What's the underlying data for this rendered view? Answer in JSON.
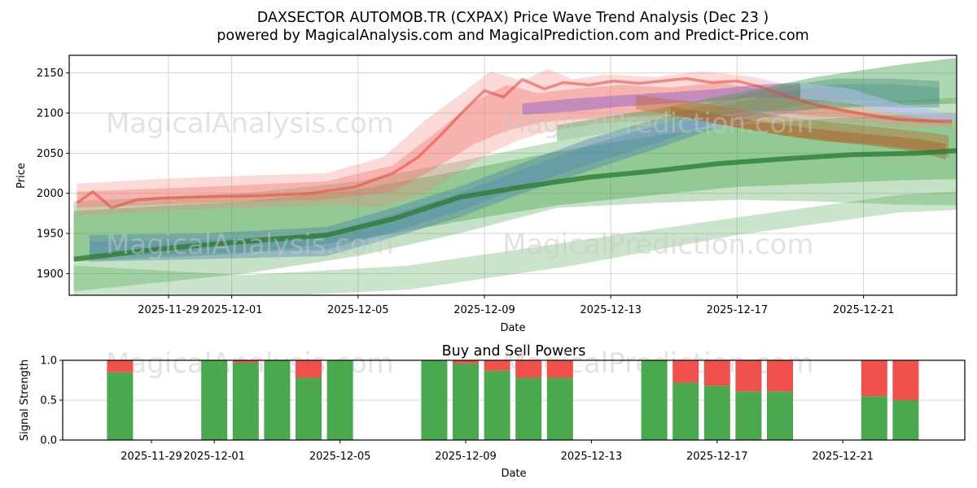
{
  "header": {
    "title_line1": "DAXSECTOR AUTOMOB.TR (CXPAX) Price Wave Trend Analysis (Dec 23 )",
    "title_line2": "powered by MagicalAnalysis.com and MagicalPrediction.com and Predict-Price.com"
  },
  "watermarks": {
    "text_left": "MagicalAnalysis.com",
    "text_right": "MagicalPrediction.com",
    "color": "#c9c9c9"
  },
  "colors": {
    "grid": "#d4d4d4",
    "frame": "#000000",
    "bar_buy": "#4aa84e",
    "bar_sell": "#f0514c"
  },
  "chart_data": [
    {
      "type": "area",
      "name": "price-wave-trend",
      "ylabel": "Price",
      "xlabel": "Date",
      "grid": true,
      "x_left_date": "2025-11-26",
      "x_right_date": "2025-12-24",
      "ylim": [
        1873,
        2172
      ],
      "yticks": [
        1900,
        1950,
        2000,
        2050,
        2100,
        2150
      ],
      "xticks": [
        "2025-11-29",
        "2025-12-01",
        "2025-12-05",
        "2025-12-09",
        "2025-12-13",
        "2025-12-17",
        "2025-12-21"
      ],
      "bands": [
        {
          "name": "green-bottom-band",
          "color": "#3fa045",
          "opacity": 0.28,
          "d": [
            0,
            5.4,
            10.6,
            15.8,
            21,
            26.1,
            28.2
          ],
          "hi": [
            1910,
            1898,
            1910,
            1940,
            1970,
            1998,
            2003
          ],
          "lo": [
            1870,
            1870,
            1880,
            1910,
            1948,
            1976,
            1980
          ]
        },
        {
          "name": "green-outer-band",
          "color": "#3fa045",
          "opacity": 0.3,
          "d": [
            0,
            3,
            5.4,
            9,
            12.2,
            15.3,
            18.4,
            21,
            23.5,
            26.1,
            28.2
          ],
          "hi": [
            1990,
            1996,
            2000,
            2015,
            2040,
            2065,
            2085,
            2098,
            2108,
            2115,
            2120
          ],
          "lo": [
            1878,
            1890,
            1900,
            1922,
            1950,
            1982,
            1988,
            1992,
            1990,
            1986,
            1985
          ]
        },
        {
          "name": "green-mid-band",
          "color": "#3fa045",
          "opacity": 0.38,
          "d": [
            0,
            5.4,
            9,
            12.2,
            15.3,
            18.4,
            21,
            23.5,
            26.1,
            28.2
          ],
          "hi": [
            1978,
            1990,
            2005,
            2028,
            2052,
            2072,
            2085,
            2092,
            2098,
            2100
          ],
          "lo": [
            1915,
            1925,
            1942,
            1965,
            1985,
            1998,
            2008,
            2012,
            2016,
            2018
          ]
        },
        {
          "name": "blue-outer-band",
          "color": "#4a7fae",
          "opacity": 0.4,
          "d": [
            0.5,
            4.1,
            8,
            10.1,
            12.2,
            14.2,
            16.3,
            18.4,
            20.4,
            22.2,
            24.1,
            25.9,
            27.4
          ],
          "hi": [
            1948,
            1950,
            1958,
            1982,
            2008,
            2038,
            2068,
            2092,
            2115,
            2132,
            2143,
            2143,
            2140
          ],
          "lo": [
            1915,
            1918,
            1922,
            1945,
            1970,
            2000,
            2028,
            2055,
            2082,
            2097,
            2110,
            2107,
            2107
          ]
        },
        {
          "name": "blue-inner-band",
          "color": "#4a7fae",
          "opacity": 0.32,
          "d": [
            0.5,
            4.1,
            8,
            10.1,
            12.2,
            14.2,
            16.3,
            18.4,
            20.4,
            22.2,
            24.1,
            25.9,
            27.4
          ],
          "hi": [
            1940,
            1942,
            1950,
            1974,
            2000,
            2030,
            2060,
            2084,
            2107,
            2124,
            2136,
            2136,
            2132
          ],
          "lo": [
            1922,
            1925,
            1930,
            1952,
            1978,
            2008,
            2036,
            2062,
            2089,
            2104,
            2117,
            2114,
            2114
          ]
        },
        {
          "name": "red-outer-band",
          "color": "#f2837a",
          "opacity": 0.3,
          "d": [
            0.1,
            2.8,
            5.4,
            8,
            9.8,
            11.1,
            12.2,
            13.2,
            14.2,
            15,
            15.8,
            16.8,
            18.4,
            19.9,
            21.5,
            23,
            24.6,
            26.1,
            27.8
          ],
          "hi": [
            2012,
            2018,
            2022,
            2025,
            2045,
            2090,
            2122,
            2152,
            2140,
            2155,
            2142,
            2148,
            2145,
            2152,
            2145,
            2132,
            2112,
            2100,
            2097
          ],
          "lo": [
            1972,
            1978,
            1982,
            1985,
            1984,
            2000,
            2026,
            2051,
            2068,
            2077,
            2082,
            2088,
            2090,
            2092,
            2098,
            2092,
            2088,
            2082,
            2082
          ]
        },
        {
          "name": "red-mid-band",
          "color": "#f2695e",
          "opacity": 0.35,
          "d": [
            0.1,
            4.1,
            8,
            10.1,
            11.6,
            12.7,
            13.7,
            14.7,
            15.8,
            17.3,
            18.9,
            20.4,
            22,
            23.5,
            25.1,
            26.7,
            27.8
          ],
          "hi": [
            2002,
            2008,
            2015,
            2035,
            2080,
            2115,
            2135,
            2125,
            2130,
            2135,
            2132,
            2138,
            2128,
            2112,
            2100,
            2094,
            2092
          ],
          "lo": [
            1982,
            1988,
            1992,
            2002,
            2035,
            2062,
            2078,
            2088,
            2092,
            2095,
            2098,
            2105,
            2102,
            2096,
            2094,
            2088,
            2086
          ]
        },
        {
          "name": "purple-band",
          "color": "#8f63c9",
          "opacity": 0.5,
          "d": [
            14.2,
            15.8,
            17.3,
            18.9,
            20.4,
            21.5,
            23
          ],
          "hi": [
            2112,
            2118,
            2122,
            2126,
            2130,
            2135,
            2138
          ],
          "lo": [
            2098,
            2102,
            2108,
            2112,
            2115,
            2120,
            2118
          ]
        },
        {
          "name": "green-topright-band",
          "color": "#3fa045",
          "opacity": 0.42,
          "d": [
            15.3,
            18.4,
            21,
            23.5,
            26.1,
            28.2
          ],
          "hi": [
            2085,
            2105,
            2125,
            2145,
            2160,
            2170
          ],
          "lo": [
            2065,
            2085,
            2100,
            2105,
            2110,
            2112
          ]
        },
        {
          "name": "orange-outer-band",
          "color": "#c06a2e",
          "opacity": 0.42,
          "d": [
            17.8,
            19.4,
            21,
            22.5,
            24.1,
            25.6,
            27.2,
            27.7
          ],
          "hi": [
            2122,
            2115,
            2105,
            2095,
            2088,
            2082,
            2075,
            2072
          ],
          "lo": [
            2105,
            2095,
            2082,
            2072,
            2065,
            2060,
            2052,
            2045
          ]
        },
        {
          "name": "orange-inner-band",
          "color": "#a8571f",
          "opacity": 0.42,
          "d": [
            18.9,
            20.4,
            22,
            23.5,
            25.1,
            26.7,
            27.6
          ],
          "hi": [
            2108,
            2098,
            2088,
            2080,
            2074,
            2068,
            2062
          ],
          "lo": [
            2098,
            2086,
            2075,
            2066,
            2060,
            2052,
            2042
          ]
        },
        {
          "name": "lavender-band",
          "color": "#b3bcf0",
          "opacity": 0.55,
          "d": [
            23,
            24.6,
            26.1,
            27.4,
            28.3
          ],
          "hi": [
            2138,
            2130,
            2112,
            2102,
            2098
          ],
          "lo": [
            2118,
            2112,
            2098,
            2090,
            2088
          ]
        }
      ],
      "lines": [
        {
          "name": "green-median-line",
          "color": "#2d7d33",
          "opacity": 0.8,
          "width": 6,
          "d": [
            0,
            2.8,
            5.4,
            8,
            10.1,
            12.2,
            14.2,
            16.3,
            18.4,
            20.4,
            22.5,
            24.6,
            26.7,
            28.2
          ],
          "v": [
            1918,
            1931,
            1940,
            1948,
            1968,
            1995,
            2008,
            2020,
            2028,
            2037,
            2043,
            2048,
            2050,
            2054
          ]
        },
        {
          "name": "red-median-line",
          "color": "#e6453c",
          "opacity": 0.55,
          "width": 3.5,
          "d": [
            0.1,
            0.6,
            1.2,
            2,
            2.8,
            4.4,
            5.9,
            7.5,
            8.9,
            10.1,
            10.9,
            11.6,
            12.4,
            13,
            13.6,
            14.2,
            14.9,
            15.5,
            16.3,
            17.1,
            17.9,
            18.6,
            19.4,
            20.2,
            21,
            21.8,
            22.5,
            23.3,
            24.1,
            25.1,
            26.1,
            27.2,
            27.8
          ],
          "v": [
            1988,
            2002,
            1982,
            1992,
            1994,
            1996,
            1997,
            2000,
            2008,
            2025,
            2045,
            2072,
            2105,
            2128,
            2120,
            2142,
            2130,
            2138,
            2135,
            2140,
            2137,
            2140,
            2143,
            2138,
            2140,
            2132,
            2122,
            2112,
            2105,
            2098,
            2092,
            2090,
            2090
          ]
        }
      ]
    },
    {
      "type": "bar",
      "name": "buy-sell-powers",
      "title": "Buy and Sell Powers",
      "ylabel": "Signal Strength",
      "xlabel": "Date",
      "stacked": true,
      "ylim": [
        0,
        1
      ],
      "ytick_labels": [
        "0.0",
        "0.5",
        "1.0"
      ],
      "ytick_values": [
        0,
        0.5,
        1
      ],
      "x_ref_date": "2025-11-29",
      "xticks": [
        "2025-11-29",
        "2025-12-01",
        "2025-12-05",
        "2025-12-09",
        "2025-12-13",
        "2025-12-17",
        "2025-12-21"
      ],
      "categories": [
        "2025-11-28",
        "2025-12-01",
        "2025-12-02",
        "2025-12-03",
        "2025-12-04",
        "2025-12-05",
        "2025-12-08",
        "2025-12-09",
        "2025-12-10",
        "2025-12-11",
        "2025-12-12",
        "2025-12-15",
        "2025-12-16",
        "2025-12-17",
        "2025-12-18",
        "2025-12-19",
        "2025-12-22",
        "2025-12-23"
      ],
      "series": [
        {
          "name": "Buy",
          "color": "#4aa84e",
          "values": [
            0.85,
            1.0,
            0.97,
            1.0,
            0.78,
            1.0,
            1.0,
            0.96,
            0.87,
            0.78,
            0.78,
            1.0,
            0.72,
            0.68,
            0.61,
            0.61,
            0.55,
            0.5
          ]
        },
        {
          "name": "Sell",
          "color": "#f0514c",
          "values": [
            0.15,
            0.0,
            0.03,
            0.0,
            0.22,
            0.0,
            0.0,
            0.04,
            0.13,
            0.22,
            0.22,
            0.0,
            0.28,
            0.32,
            0.39,
            0.39,
            0.45,
            0.5
          ]
        }
      ]
    }
  ]
}
